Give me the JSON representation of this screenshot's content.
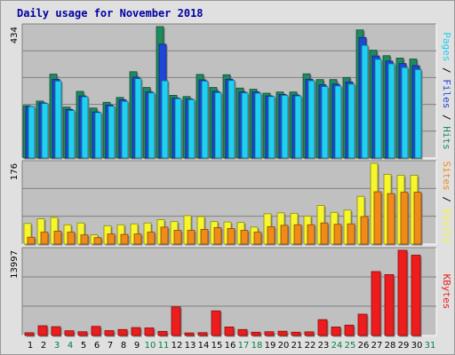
{
  "title": "Daily usage for November 2018",
  "colors": {
    "background": "#e0e0e0",
    "plot": "#c0c0c0",
    "hits": "#1e8a5e",
    "files": "#1e46d8",
    "pages": "#20d0f0",
    "visits": "#f6f62a",
    "sites": "#f08a18",
    "kbytes": "#ee1c1c",
    "weekday": "#000000",
    "weekend": "#008040",
    "title": "#0000a0"
  },
  "chart_data": [
    {
      "type": "bar",
      "name": "hits-files-pages",
      "max_label": "434",
      "ylim": [
        0,
        434
      ],
      "series_labels": [
        "Pages",
        "Files",
        "Hits"
      ],
      "categories": [
        "1",
        "2",
        "3",
        "4",
        "5",
        "6",
        "7",
        "8",
        "9",
        "10",
        "11",
        "12",
        "13",
        "14",
        "15",
        "16",
        "17",
        "18",
        "19",
        "20",
        "21",
        "22",
        "23",
        "24",
        "25",
        "26",
        "27",
        "28",
        "29",
        "30"
      ],
      "series": [
        {
          "name": "Hits",
          "values": [
            173,
            188,
            277,
            168,
            220,
            165,
            184,
            200,
            285,
            233,
            434,
            207,
            203,
            276,
            233,
            275,
            231,
            227,
            214,
            218,
            218,
            278,
            259,
            259,
            266,
            423,
            356,
            338,
            330,
            327
          ]
        },
        {
          "name": "Files",
          "values": [
            170,
            182,
            260,
            160,
            205,
            152,
            175,
            192,
            267,
            218,
            376,
            198,
            195,
            258,
            220,
            260,
            218,
            218,
            205,
            210,
            208,
            260,
            242,
            244,
            251,
            398,
            337,
            320,
            312,
            305
          ]
        },
        {
          "name": "Pages",
          "values": [
            170,
            180,
            254,
            157,
            202,
            150,
            171,
            187,
            262,
            215,
            255,
            196,
            193,
            254,
            216,
            256,
            215,
            214,
            203,
            207,
            205,
            255,
            236,
            238,
            244,
            372,
            326,
            311,
            299,
            292
          ]
        }
      ]
    },
    {
      "type": "bar",
      "name": "visits-sites",
      "max_label": "176",
      "ylim": [
        0,
        176
      ],
      "series_labels": [
        "Sites",
        "Visits"
      ],
      "categories": [
        "1",
        "2",
        "3",
        "4",
        "5",
        "6",
        "7",
        "8",
        "9",
        "10",
        "11",
        "12",
        "13",
        "14",
        "15",
        "16",
        "17",
        "18",
        "19",
        "20",
        "21",
        "22",
        "23",
        "24",
        "25",
        "26",
        "27",
        "28",
        "29",
        "30"
      ],
      "series": [
        {
          "name": "Visits",
          "values": [
            45,
            55,
            58,
            42,
            46,
            20,
            40,
            42,
            44,
            46,
            53,
            49,
            62,
            60,
            49,
            48,
            47,
            37,
            66,
            68,
            67,
            61,
            84,
            69,
            74,
            104,
            176,
            152,
            150,
            150
          ]
        },
        {
          "name": "Sites",
          "values": [
            15,
            26,
            28,
            26,
            20,
            14,
            22,
            21,
            22,
            26,
            37,
            30,
            30,
            32,
            36,
            34,
            30,
            26,
            38,
            41,
            42,
            42,
            46,
            43,
            44,
            60,
            114,
            110,
            113,
            113
          ]
        }
      ]
    },
    {
      "type": "bar",
      "name": "kbytes",
      "max_label": "13997",
      "ylim": [
        0,
        13997
      ],
      "series_labels": [
        "KBytes"
      ],
      "categories": [
        "1",
        "2",
        "3",
        "4",
        "5",
        "6",
        "7",
        "8",
        "9",
        "10",
        "11",
        "12",
        "13",
        "14",
        "15",
        "16",
        "17",
        "18",
        "19",
        "20",
        "21",
        "22",
        "23",
        "24",
        "25",
        "26",
        "27",
        "28",
        "29",
        "30"
      ],
      "series": [
        {
          "name": "KBytes",
          "values": [
            450,
            1600,
            1450,
            780,
            620,
            1500,
            800,
            980,
            1300,
            1240,
            680,
            4700,
            420,
            470,
            4050,
            1400,
            980,
            540,
            620,
            700,
            540,
            600,
            2600,
            1400,
            1700,
            3500,
            10500,
            10000,
            14000,
            13200
          ]
        }
      ]
    }
  ],
  "x_axis": {
    "days": [
      {
        "label": "1",
        "weekend": false
      },
      {
        "label": "2",
        "weekend": false
      },
      {
        "label": "3",
        "weekend": true
      },
      {
        "label": "4",
        "weekend": true
      },
      {
        "label": "5",
        "weekend": false
      },
      {
        "label": "6",
        "weekend": false
      },
      {
        "label": "7",
        "weekend": false
      },
      {
        "label": "8",
        "weekend": false
      },
      {
        "label": "9",
        "weekend": false
      },
      {
        "label": "10",
        "weekend": true
      },
      {
        "label": "11",
        "weekend": true
      },
      {
        "label": "12",
        "weekend": false
      },
      {
        "label": "13",
        "weekend": false
      },
      {
        "label": "14",
        "weekend": false
      },
      {
        "label": "15",
        "weekend": false
      },
      {
        "label": "16",
        "weekend": false
      },
      {
        "label": "17",
        "weekend": true
      },
      {
        "label": "18",
        "weekend": true
      },
      {
        "label": "19",
        "weekend": false
      },
      {
        "label": "20",
        "weekend": false
      },
      {
        "label": "21",
        "weekend": false
      },
      {
        "label": "22",
        "weekend": false
      },
      {
        "label": "23",
        "weekend": false
      },
      {
        "label": "24",
        "weekend": true
      },
      {
        "label": "25",
        "weekend": true
      },
      {
        "label": "26",
        "weekend": false
      },
      {
        "label": "27",
        "weekend": false
      },
      {
        "label": "28",
        "weekend": false
      },
      {
        "label": "29",
        "weekend": false
      },
      {
        "label": "30",
        "weekend": false
      },
      {
        "label": "31",
        "weekend": true
      }
    ]
  }
}
